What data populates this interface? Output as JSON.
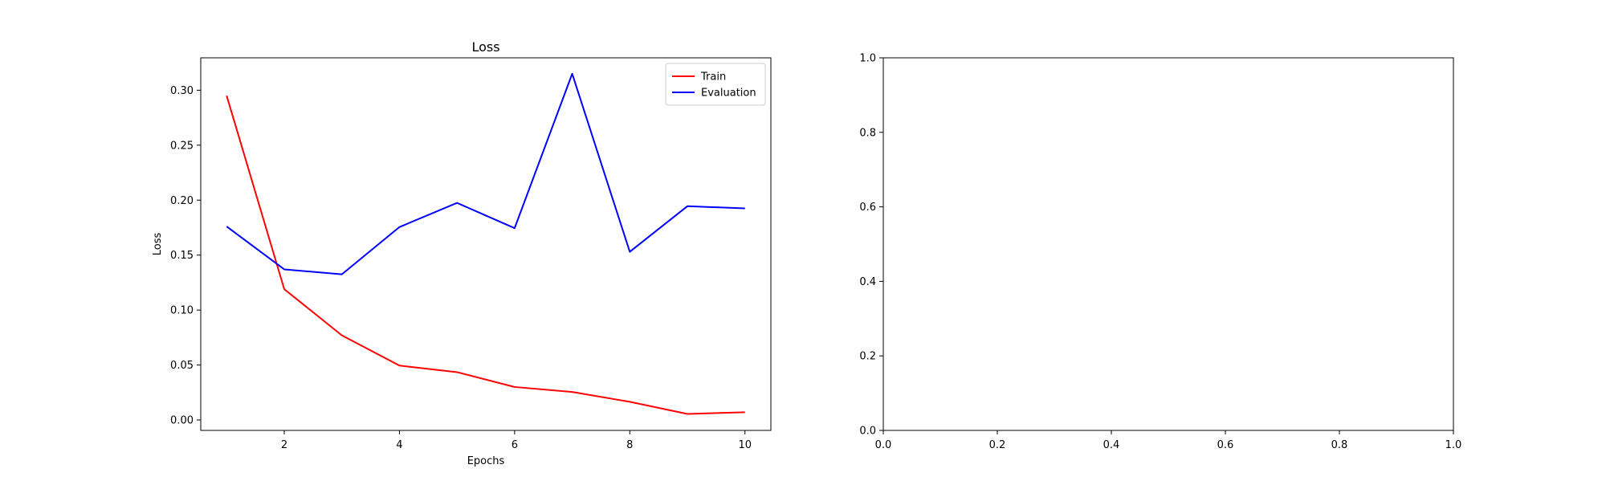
{
  "chart_data": [
    {
      "type": "line",
      "title": "Loss",
      "xlabel": "Epochs",
      "ylabel": "Loss",
      "x": [
        1,
        2,
        3,
        4,
        5,
        6,
        7,
        8,
        9,
        10
      ],
      "xlim": [
        0.55,
        10.45
      ],
      "ylim": [
        -0.0095,
        0.3295
      ],
      "xticks": [
        2,
        4,
        6,
        8,
        10
      ],
      "yticks": [
        0.0,
        0.05,
        0.1,
        0.15,
        0.2,
        0.25,
        0.3
      ],
      "xtick_labels": [
        "2",
        "4",
        "6",
        "8",
        "10"
      ],
      "ytick_labels": [
        "0.00",
        "0.05",
        "0.10",
        "0.15",
        "0.20",
        "0.25",
        "0.30"
      ],
      "grid": false,
      "legend": "upper-right",
      "series": [
        {
          "name": "Train",
          "color": "#ff0000",
          "values": [
            0.295,
            0.119,
            0.077,
            0.0495,
            0.0435,
            0.03,
            0.0255,
            0.0165,
            0.0055,
            0.007
          ]
        },
        {
          "name": "Evaluation",
          "color": "#0000ff",
          "values": [
            0.176,
            0.137,
            0.1325,
            0.1755,
            0.1975,
            0.1745,
            0.315,
            0.153,
            0.1945,
            0.1925
          ]
        }
      ]
    },
    {
      "type": "line",
      "title": "",
      "xlabel": "",
      "ylabel": "",
      "xlim": [
        0.0,
        1.0
      ],
      "ylim": [
        0.0,
        1.0
      ],
      "xticks": [
        0.0,
        0.2,
        0.4,
        0.6,
        0.8,
        1.0
      ],
      "yticks": [
        0.0,
        0.2,
        0.4,
        0.6,
        0.8,
        1.0
      ],
      "xtick_labels": [
        "0.0",
        "0.2",
        "0.4",
        "0.6",
        "0.8",
        "1.0"
      ],
      "ytick_labels": [
        "0.0",
        "0.2",
        "0.4",
        "0.6",
        "0.8",
        "1.0"
      ],
      "grid": false,
      "series": []
    }
  ]
}
